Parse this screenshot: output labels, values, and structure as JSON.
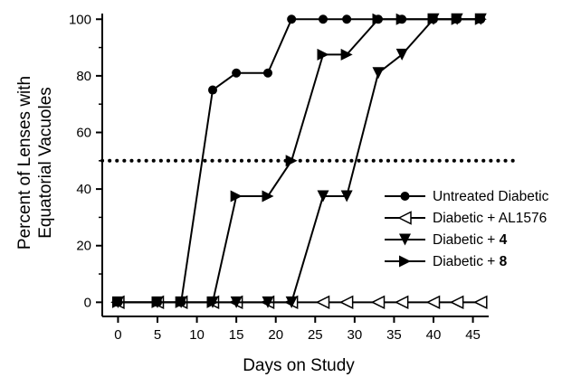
{
  "chart_data": {
    "type": "line",
    "title": "",
    "xlabel": "Days on Study",
    "ylabel_lines": [
      "Percent of Lenses with",
      "Equatorial Vacuoles"
    ],
    "xlim": [
      -2,
      47
    ],
    "ylim": [
      -5,
      102
    ],
    "xticks": [
      0,
      5,
      10,
      15,
      20,
      25,
      30,
      35,
      40,
      45
    ],
    "yticks": [
      0,
      20,
      40,
      60,
      80,
      100
    ],
    "reference_line": {
      "y": 50,
      "style": "dotted"
    },
    "legend_position": "right",
    "series": [
      {
        "name_parts": [
          {
            "text": "Untreated Diabetic",
            "bold": false
          }
        ],
        "marker": "circle-filled",
        "x": [
          0,
          5,
          8,
          12,
          15,
          19,
          22,
          26,
          29,
          33,
          36,
          40,
          43,
          46
        ],
        "y": [
          0,
          0,
          0,
          75,
          81,
          81,
          100,
          100,
          100,
          100,
          100,
          100,
          100,
          100
        ]
      },
      {
        "name_parts": [
          {
            "text": "Diabetic + AL1576",
            "bold": false
          }
        ],
        "marker": "triangle-left-open",
        "x": [
          0,
          5,
          8,
          12,
          15,
          19,
          22,
          26,
          29,
          33,
          36,
          40,
          43,
          46
        ],
        "y": [
          0,
          0,
          0,
          0,
          0,
          0,
          0,
          0,
          0,
          0,
          0,
          0,
          0,
          0
        ]
      },
      {
        "name_parts": [
          {
            "text": "Diabetic + ",
            "bold": false
          },
          {
            "text": "4",
            "bold": true
          }
        ],
        "marker": "triangle-down-filled",
        "x": [
          0,
          5,
          8,
          12,
          15,
          19,
          22,
          26,
          29,
          33,
          36,
          40,
          43,
          46
        ],
        "y": [
          0,
          0,
          0,
          0,
          0,
          0,
          0,
          37.5,
          37.5,
          81,
          87.5,
          100,
          100,
          100
        ]
      },
      {
        "name_parts": [
          {
            "text": "Diabetic + ",
            "bold": false
          },
          {
            "text": "8",
            "bold": true
          }
        ],
        "marker": "triangle-right-filled",
        "x": [
          0,
          5,
          8,
          12,
          15,
          19,
          22,
          26,
          29,
          33,
          36,
          40,
          43,
          46
        ],
        "y": [
          0,
          0,
          0,
          0,
          37.5,
          37.5,
          50,
          87.5,
          87.5,
          100,
          100,
          100,
          100,
          100
        ]
      }
    ]
  }
}
